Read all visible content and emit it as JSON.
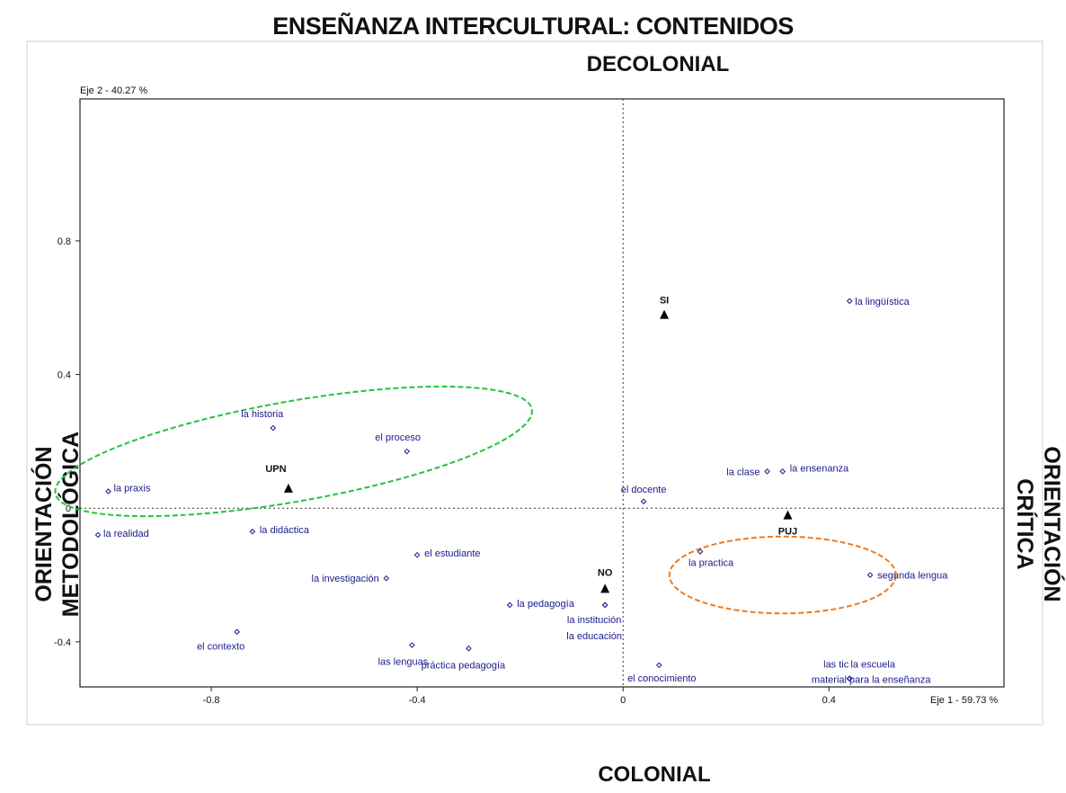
{
  "chart_data": {
    "type": "scatter",
    "title": "ENSEÑANZA INTERCULTURAL: CONTENIDOS",
    "labels": {
      "top": "DECOLONIAL",
      "bottom": "COLONIAL",
      "left_line1": "ORIENTACIÓN",
      "left_line2": "METODOLÓGICA",
      "right_line1": "ORIENTACIÓN",
      "right_line2": "CRÍTICA"
    },
    "xlabel": "Eje 1  -  59.73 %",
    "ylabel": "Eje 2  -  40.27 %",
    "xlim": [
      -1.055,
      0.74
    ],
    "ylim": [
      -0.535,
      1.225
    ],
    "x_ticks": [
      {
        "value": -0.8,
        "label": "-0.8"
      },
      {
        "value": -0.4,
        "label": "-0.4"
      },
      {
        "value": 0,
        "label": "0"
      },
      {
        "value": 0.4,
        "label": "0.4"
      }
    ],
    "y_ticks": [
      {
        "value": 0.8,
        "label": "0.8"
      },
      {
        "value": 0.4,
        "label": "0.4"
      },
      {
        "value": 0,
        "label": "0"
      },
      {
        "value": -0.4,
        "label": "-0.4"
      }
    ],
    "grid": false,
    "series": [
      {
        "kind": "word",
        "marker": "diamond",
        "color": "#1a1a8c",
        "points": [
          {
            "label": "la lingüística",
            "x": 0.44,
            "y": 0.62
          },
          {
            "label": "la historia",
            "x": -0.68,
            "y": 0.24
          },
          {
            "label": "el proceso",
            "x": -0.42,
            "y": 0.17
          },
          {
            "label": "la clase",
            "x": 0.28,
            "y": 0.11
          },
          {
            "label": "la ensenanza",
            "x": 0.31,
            "y": 0.11
          },
          {
            "label": "la praxis",
            "x": -1.0,
            "y": 0.05
          },
          {
            "label": "el docente",
            "x": 0.04,
            "y": 0.02
          },
          {
            "label": "la realidad",
            "x": -1.02,
            "y": -0.08
          },
          {
            "label": "la didáctica",
            "x": -0.72,
            "y": -0.07
          },
          {
            "label": "la practica",
            "x": 0.15,
            "y": -0.13
          },
          {
            "label": "el estudiante",
            "x": -0.4,
            "y": -0.14
          },
          {
            "label": "segunda lengua",
            "x": 0.48,
            "y": -0.2
          },
          {
            "label": "la investigación",
            "x": -0.46,
            "y": -0.21
          },
          {
            "label": "la pedagogía",
            "x": -0.22,
            "y": -0.29
          },
          {
            "label": "la institución",
            "x": -0.035,
            "y": -0.29
          },
          {
            "label": "la educación",
            "x": -0.035,
            "y": -0.29
          },
          {
            "label": "el contexto",
            "x": -0.75,
            "y": -0.37
          },
          {
            "label": "las lenguas",
            "x": -0.41,
            "y": -0.41
          },
          {
            "label": "práctica pedagogía",
            "x": -0.3,
            "y": -0.42
          },
          {
            "label": "el conocimiento",
            "x": 0.07,
            "y": -0.47
          },
          {
            "label": "las tic",
            "x": 0.44,
            "y": -0.51
          },
          {
            "label": "la escuela",
            "x": 0.44,
            "y": -0.51
          },
          {
            "label": "material para la enseñanza",
            "x": 0.44,
            "y": -0.51
          }
        ]
      },
      {
        "kind": "supplementary",
        "marker": "triangle",
        "color": "#000000",
        "points": [
          {
            "label": "SI",
            "x": 0.08,
            "y": 0.58
          },
          {
            "label": "UPN",
            "x": -0.65,
            "y": 0.06
          },
          {
            "label": "PUJ",
            "x": 0.32,
            "y": -0.02
          },
          {
            "label": "NO",
            "x": -0.035,
            "y": -0.24
          }
        ]
      }
    ],
    "ellipses": [
      {
        "color": "#22c43a",
        "cx": -0.64,
        "cy": 0.17,
        "rx": 0.47,
        "ry": 0.15,
        "rotation": -10
      },
      {
        "color": "#f07a1a",
        "cx": 0.31,
        "cy": -0.2,
        "rx": 0.22,
        "ry": 0.115,
        "rotation": 0
      }
    ]
  }
}
